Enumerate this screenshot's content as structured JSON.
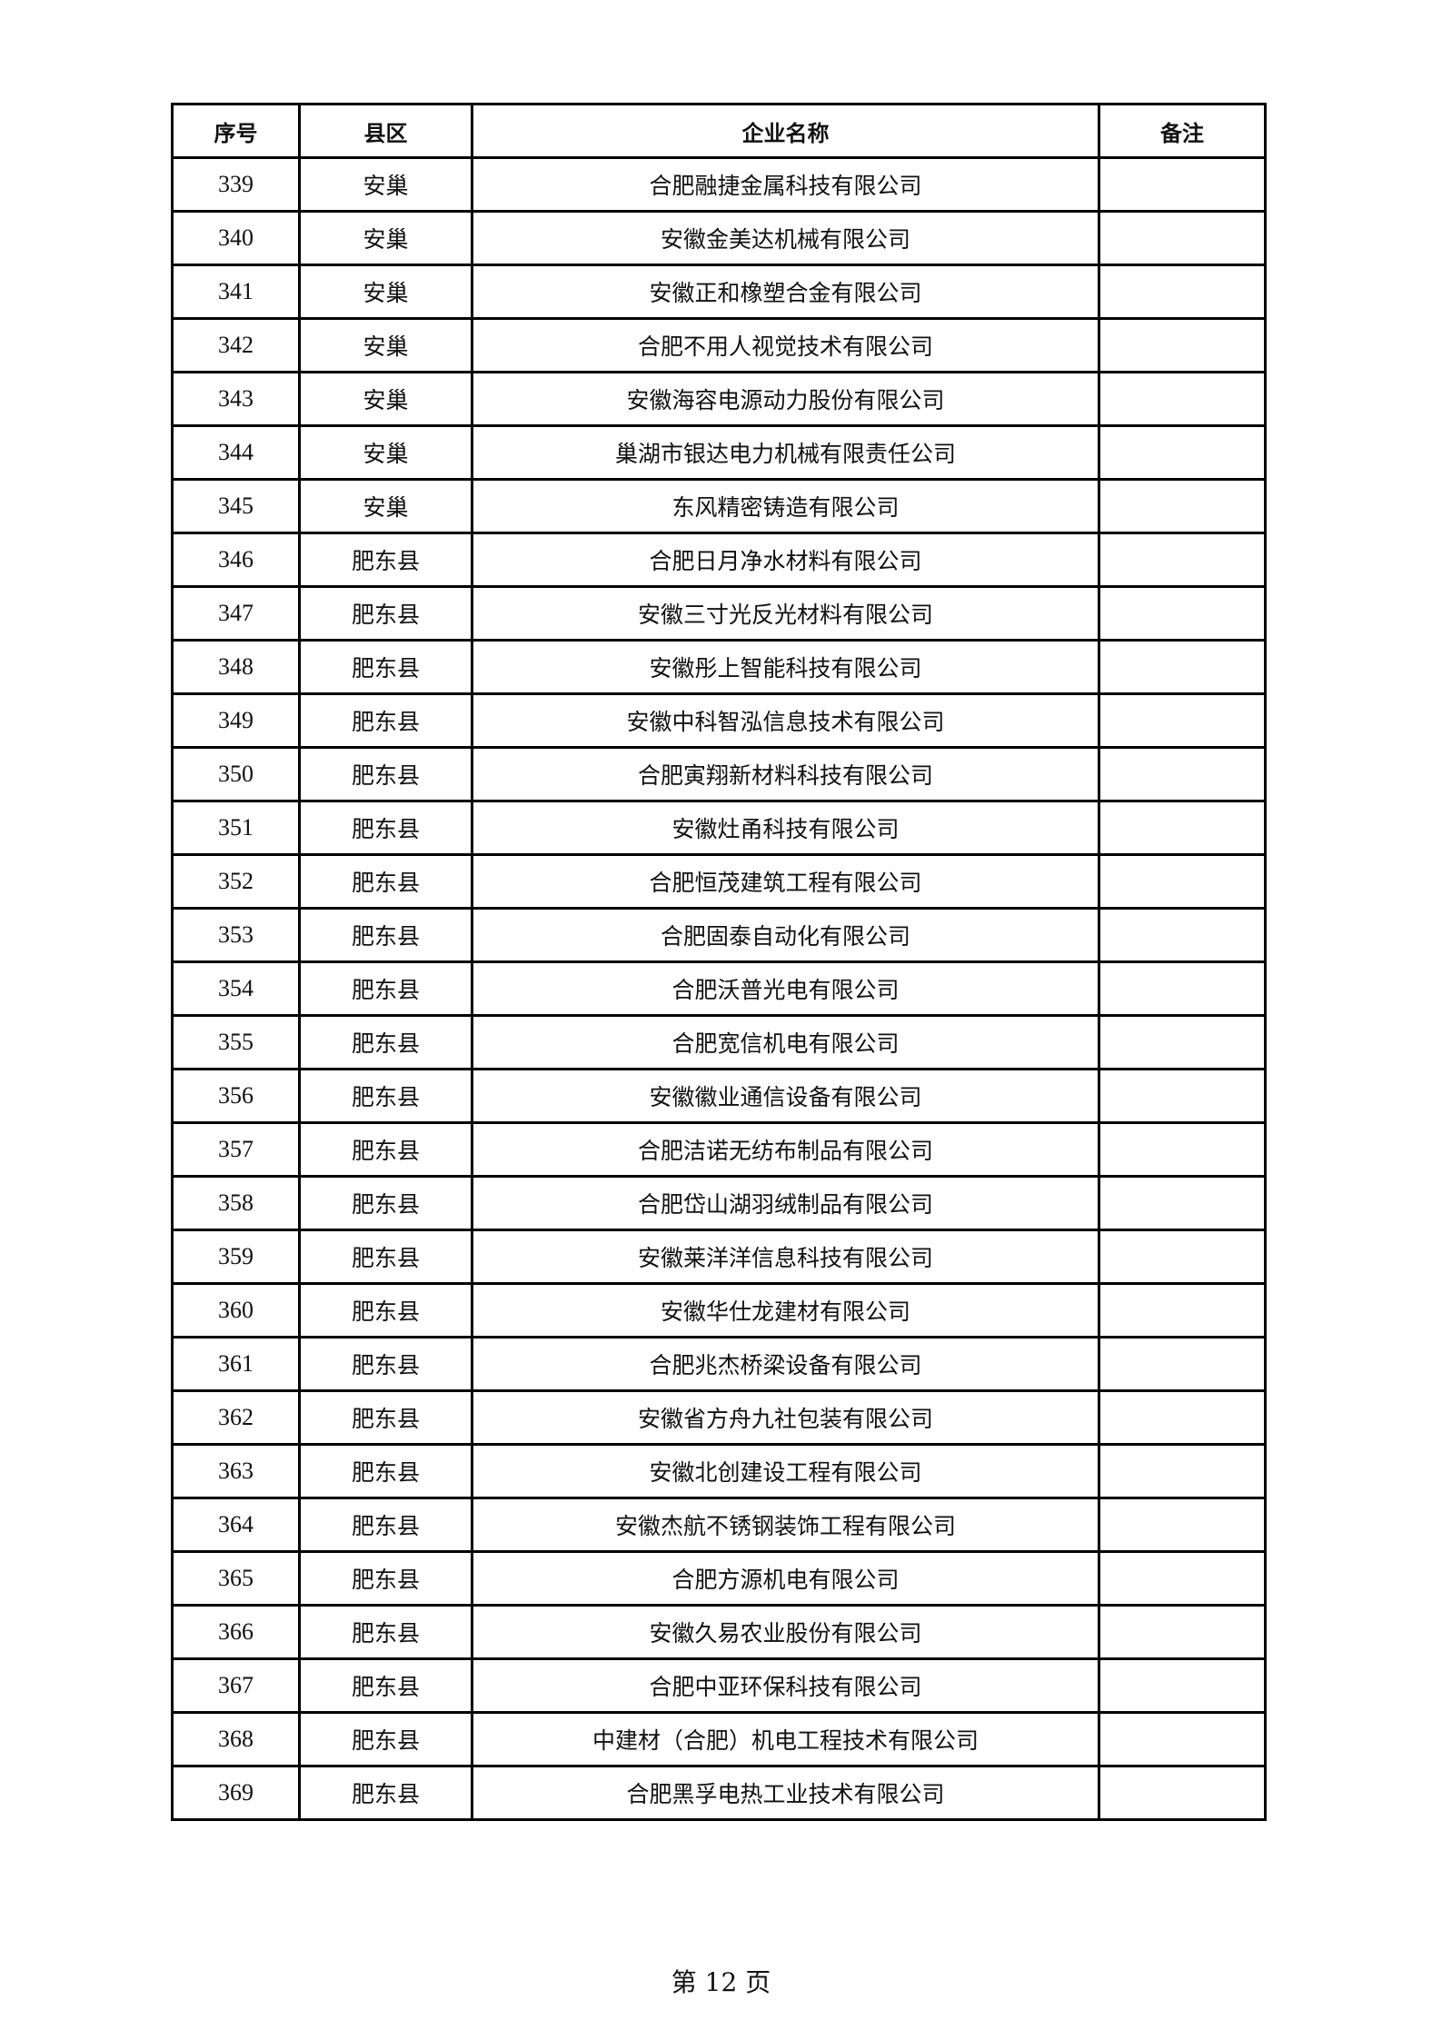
{
  "table": {
    "headers": [
      "序号",
      "县区",
      "企业名称",
      "备注"
    ],
    "rows": [
      {
        "no": "339",
        "district": "安巢",
        "company": "合肥融捷金属科技有限公司",
        "note": ""
      },
      {
        "no": "340",
        "district": "安巢",
        "company": "安徽金美达机械有限公司",
        "note": ""
      },
      {
        "no": "341",
        "district": "安巢",
        "company": "安徽正和橡塑合金有限公司",
        "note": ""
      },
      {
        "no": "342",
        "district": "安巢",
        "company": "合肥不用人视觉技术有限公司",
        "note": ""
      },
      {
        "no": "343",
        "district": "安巢",
        "company": "安徽海容电源动力股份有限公司",
        "note": ""
      },
      {
        "no": "344",
        "district": "安巢",
        "company": "巢湖市银达电力机械有限责任公司",
        "note": ""
      },
      {
        "no": "345",
        "district": "安巢",
        "company": "东风精密铸造有限公司",
        "note": ""
      },
      {
        "no": "346",
        "district": "肥东县",
        "company": "合肥日月净水材料有限公司",
        "note": ""
      },
      {
        "no": "347",
        "district": "肥东县",
        "company": "安徽三寸光反光材料有限公司",
        "note": ""
      },
      {
        "no": "348",
        "district": "肥东县",
        "company": "安徽彤上智能科技有限公司",
        "note": ""
      },
      {
        "no": "349",
        "district": "肥东县",
        "company": "安徽中科智泓信息技术有限公司",
        "note": ""
      },
      {
        "no": "350",
        "district": "肥东县",
        "company": "合肥寅翔新材料科技有限公司",
        "note": ""
      },
      {
        "no": "351",
        "district": "肥东县",
        "company": "安徽灶甬科技有限公司",
        "note": ""
      },
      {
        "no": "352",
        "district": "肥东县",
        "company": "合肥恒茂建筑工程有限公司",
        "note": ""
      },
      {
        "no": "353",
        "district": "肥东县",
        "company": "合肥固泰自动化有限公司",
        "note": ""
      },
      {
        "no": "354",
        "district": "肥东县",
        "company": "合肥沃普光电有限公司",
        "note": ""
      },
      {
        "no": "355",
        "district": "肥东县",
        "company": "合肥宽信机电有限公司",
        "note": ""
      },
      {
        "no": "356",
        "district": "肥东县",
        "company": "安徽徽业通信设备有限公司",
        "note": ""
      },
      {
        "no": "357",
        "district": "肥东县",
        "company": "合肥洁诺无纺布制品有限公司",
        "note": ""
      },
      {
        "no": "358",
        "district": "肥东县",
        "company": "合肥岱山湖羽绒制品有限公司",
        "note": ""
      },
      {
        "no": "359",
        "district": "肥东县",
        "company": "安徽莱洋洋信息科技有限公司",
        "note": ""
      },
      {
        "no": "360",
        "district": "肥东县",
        "company": "安徽华仕龙建材有限公司",
        "note": ""
      },
      {
        "no": "361",
        "district": "肥东县",
        "company": "合肥兆杰桥梁设备有限公司",
        "note": ""
      },
      {
        "no": "362",
        "district": "肥东县",
        "company": "安徽省方舟九社包装有限公司",
        "note": ""
      },
      {
        "no": "363",
        "district": "肥东县",
        "company": "安徽北创建设工程有限公司",
        "note": ""
      },
      {
        "no": "364",
        "district": "肥东县",
        "company": "安徽杰航不锈钢装饰工程有限公司",
        "note": ""
      },
      {
        "no": "365",
        "district": "肥东县",
        "company": "合肥方源机电有限公司",
        "note": ""
      },
      {
        "no": "366",
        "district": "肥东县",
        "company": "安徽久易农业股份有限公司",
        "note": ""
      },
      {
        "no": "367",
        "district": "肥东县",
        "company": "合肥中亚环保科技有限公司",
        "note": ""
      },
      {
        "no": "368",
        "district": "肥东县",
        "company": "中建材（合肥）机电工程技术有限公司",
        "note": ""
      },
      {
        "no": "369",
        "district": "肥东县",
        "company": "合肥黑孚电热工业技术有限公司",
        "note": ""
      }
    ]
  },
  "footer": {
    "page_label": "第 12 页"
  }
}
